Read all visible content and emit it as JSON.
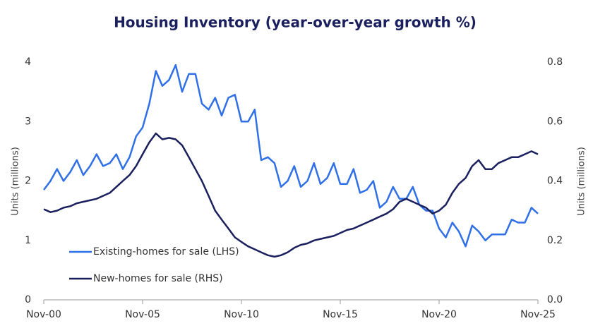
{
  "chart_data": {
    "type": "line",
    "title": "Housing Inventory (year-over-year growth %)",
    "ylabel": "Units (millions)",
    "y2label": "Units (millions)",
    "x": [
      2000.83,
      2001.17,
      2001.5,
      2001.83,
      2002.17,
      2002.5,
      2002.83,
      2003.17,
      2003.5,
      2003.83,
      2004.17,
      2004.5,
      2004.83,
      2005.17,
      2005.5,
      2005.83,
      2006.17,
      2006.5,
      2006.83,
      2007.17,
      2007.5,
      2007.83,
      2008.17,
      2008.5,
      2008.83,
      2009.17,
      2009.5,
      2009.83,
      2010.17,
      2010.5,
      2010.83,
      2011.17,
      2011.5,
      2011.83,
      2012.17,
      2012.5,
      2012.83,
      2013.17,
      2013.5,
      2013.83,
      2014.17,
      2014.5,
      2014.83,
      2015.17,
      2015.5,
      2015.83,
      2016.17,
      2016.5,
      2016.83,
      2017.17,
      2017.5,
      2017.83,
      2018.17,
      2018.5,
      2018.83,
      2019.17,
      2019.5,
      2019.83,
      2020.17,
      2020.5,
      2020.83,
      2021.17,
      2021.5,
      2021.83,
      2022.17,
      2022.5,
      2022.83,
      2023.17,
      2023.5,
      2023.83,
      2024.17,
      2024.5,
      2024.83,
      2025.17,
      2025.5,
      2025.83
    ],
    "series": [
      {
        "name": "Existing-homes for sale (LHS)",
        "color": "#2f6fe8",
        "values": [
          1.85,
          2.0,
          2.2,
          2.0,
          2.15,
          2.35,
          2.1,
          2.25,
          2.45,
          2.25,
          2.3,
          2.45,
          2.2,
          2.4,
          2.75,
          2.9,
          3.3,
          3.85,
          3.6,
          3.7,
          3.95,
          3.5,
          3.8,
          3.8,
          3.3,
          3.2,
          3.4,
          3.1,
          3.4,
          3.45,
          3.0,
          3.0,
          3.2,
          2.35,
          2.4,
          2.3,
          1.9,
          2.0,
          2.25,
          1.9,
          2.0,
          2.3,
          1.95,
          2.05,
          2.3,
          1.95,
          1.95,
          2.2,
          1.8,
          1.85,
          2.0,
          1.55,
          1.65,
          1.9,
          1.7,
          1.7,
          1.9,
          1.6,
          1.5,
          1.5,
          1.2,
          1.05,
          1.3,
          1.15,
          0.9,
          1.25,
          1.15,
          1.0,
          1.1,
          1.1,
          1.1,
          1.35,
          1.3,
          1.3,
          1.55,
          1.45
        ]
      },
      {
        "name": "New-homes for sale (RHS)",
        "color": "#1a1f5e",
        "axis": "y2",
        "values": [
          0.305,
          0.295,
          0.3,
          0.31,
          0.315,
          0.325,
          0.33,
          0.335,
          0.34,
          0.35,
          0.36,
          0.38,
          0.4,
          0.42,
          0.45,
          0.49,
          0.53,
          0.56,
          0.54,
          0.545,
          0.54,
          0.52,
          0.48,
          0.44,
          0.4,
          0.35,
          0.3,
          0.27,
          0.24,
          0.21,
          0.195,
          0.18,
          0.17,
          0.16,
          0.15,
          0.145,
          0.15,
          0.16,
          0.175,
          0.185,
          0.19,
          0.2,
          0.205,
          0.21,
          0.215,
          0.225,
          0.235,
          0.24,
          0.25,
          0.26,
          0.27,
          0.28,
          0.29,
          0.305,
          0.33,
          0.34,
          0.33,
          0.32,
          0.31,
          0.29,
          0.3,
          0.32,
          0.36,
          0.39,
          0.41,
          0.45,
          0.47,
          0.44,
          0.44,
          0.46,
          0.47,
          0.48,
          0.48,
          0.49,
          0.5,
          0.49
        ]
      }
    ],
    "xlim": [
      2000.83,
      2025.83
    ],
    "xticks": [
      {
        "value": 2000.83,
        "label": "Nov-00"
      },
      {
        "value": 2005.83,
        "label": "Nov-05"
      },
      {
        "value": 2010.83,
        "label": "Nov-10"
      },
      {
        "value": 2015.83,
        "label": "Nov-15"
      },
      {
        "value": 2020.83,
        "label": "Nov-20"
      },
      {
        "value": 2025.83,
        "label": "Nov-25"
      }
    ],
    "ylim": [
      0,
      4
    ],
    "yticks": [
      0,
      1,
      2,
      3,
      4
    ],
    "y2lim": [
      0,
      0.8
    ],
    "y2ticks": [
      {
        "value": 0,
        "label": "0.0"
      },
      0.2,
      0.4,
      0.6,
      0.8
    ]
  }
}
